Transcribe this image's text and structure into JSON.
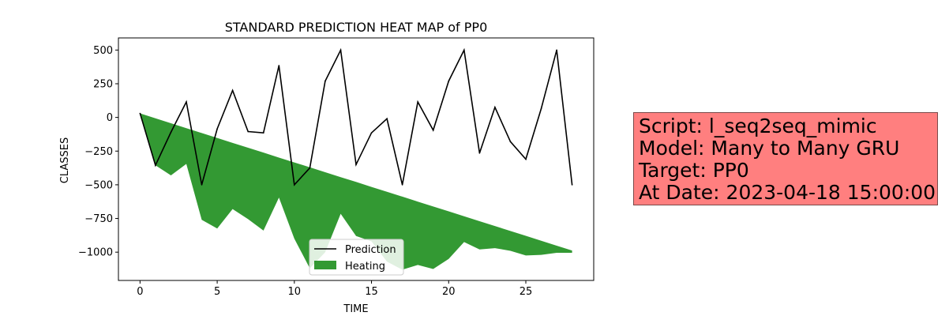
{
  "chart_data": {
    "type": "line",
    "title": "STANDARD PREDICTION HEAT MAP of PP0",
    "xlabel": "TIME",
    "ylabel": "CLASSES",
    "xlim": [
      -1.4,
      29.4
    ],
    "ylim": [
      -1210,
      590
    ],
    "xticks": [
      0,
      5,
      10,
      15,
      20,
      25
    ],
    "yticks": [
      500,
      250,
      0,
      -250,
      -500,
      -750,
      -1000
    ],
    "ytick_labels": [
      "500",
      "250",
      "0",
      "−250",
      "−500",
      "−750",
      "−1000"
    ],
    "grid": false,
    "legend_position": "bottom-center",
    "series": [
      {
        "name": "Prediction",
        "kind": "line",
        "color": "#000000",
        "x": [
          0,
          1,
          2,
          3,
          4,
          5,
          6,
          7,
          8,
          9,
          10,
          11,
          12,
          13,
          14,
          15,
          16,
          17,
          18,
          19,
          20,
          21,
          22,
          23,
          24,
          25,
          26,
          27,
          28
        ],
        "values": [
          30,
          -355,
          -110,
          115,
          -500,
          -85,
          200,
          -105,
          -115,
          385,
          -500,
          -375,
          270,
          500,
          -350,
          -115,
          -10,
          -500,
          115,
          -95,
          270,
          500,
          -265,
          75,
          -180,
          -310,
          65,
          500,
          -500
        ]
      },
      {
        "name": "Heating",
        "kind": "fill_between",
        "color": "#008000",
        "opacity": 0.8,
        "x": [
          0,
          1,
          2,
          3,
          4,
          5,
          6,
          7,
          8,
          9,
          10,
          11,
          12,
          13,
          14,
          15,
          16,
          17,
          18,
          19,
          20,
          21,
          22,
          23,
          24,
          25,
          26,
          27,
          28
        ],
        "upper": [
          30,
          -7,
          -43,
          -80,
          -116,
          -152,
          -189,
          -225,
          -261,
          -298,
          -334,
          -370,
          -407,
          -443,
          -479,
          -516,
          -552,
          -588,
          -625,
          -661,
          -697,
          -734,
          -770,
          -806,
          -843,
          -879,
          -915,
          -952,
          -988
        ],
        "lower": [
          30,
          -355,
          -430,
          -345,
          -760,
          -825,
          -680,
          -755,
          -840,
          -595,
          -900,
          -1120,
          -1000,
          -715,
          -880,
          -920,
          -1070,
          -1130,
          -1095,
          -1125,
          -1050,
          -925,
          -980,
          -970,
          -990,
          -1025,
          -1020,
          -1005,
          -1005
        ]
      }
    ]
  },
  "info_box": {
    "lines": [
      "Script: l_seq2seq_mimic",
      "Model: Many to Many GRU",
      "Target: PP0",
      "At Date: 2023-04-18 15:00:00"
    ],
    "background": "#ff7f7f"
  }
}
